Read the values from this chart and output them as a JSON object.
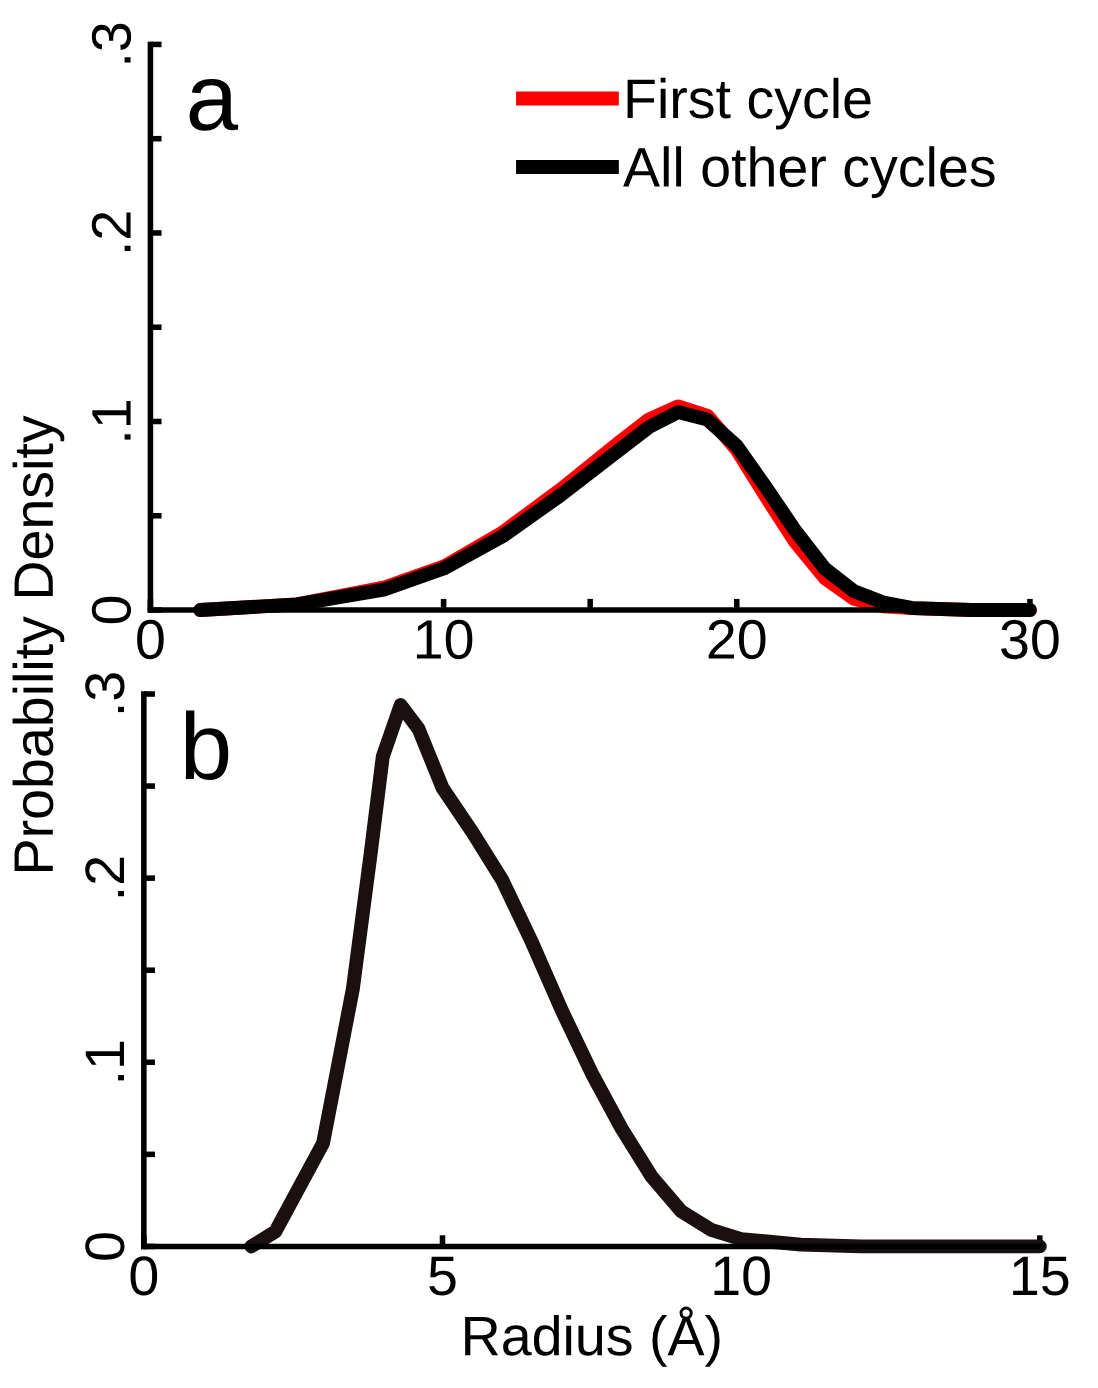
{
  "chart_data": [
    {
      "type": "line",
      "ylabel": "Probability Density",
      "annotations": [
        "a"
      ],
      "xlim": [
        0,
        30
      ],
      "ylim": [
        0,
        0.3
      ],
      "xticks": [
        0,
        {
          "value": 5,
          "label": null
        },
        10,
        {
          "value": 15,
          "label": null
        },
        20,
        {
          "value": 25,
          "label": null
        },
        30
      ],
      "yticks": [
        {
          "value": 0,
          "label": "0"
        },
        {
          "value": 0.05,
          "label": null
        },
        {
          "value": 0.1,
          "label": ".1"
        },
        {
          "value": 0.15,
          "label": null
        },
        {
          "value": 0.2,
          "label": ".2"
        },
        {
          "value": 0.25,
          "label": null
        },
        {
          "value": 0.3,
          "label": ".3"
        }
      ],
      "grid": false,
      "legend": "top right",
      "marker": "none",
      "line_style": "solid",
      "x": [
        1.7,
        5,
        8,
        10,
        12,
        14,
        16,
        17,
        18,
        19,
        20,
        21,
        22,
        23,
        24,
        25,
        26,
        28,
        30
      ],
      "series": [
        {
          "name": "First cycle",
          "color": "#ff0000",
          "values": [
            0,
            0.003,
            0.012,
            0.023,
            0.041,
            0.064,
            0.089,
            0.101,
            0.108,
            0.103,
            0.085,
            0.06,
            0.036,
            0.017,
            0.006,
            0.002,
            0.001,
            0,
            0
          ]
        },
        {
          "name": "All other cycles",
          "color": "#000000",
          "values": [
            0,
            0.003,
            0.011,
            0.022,
            0.039,
            0.061,
            0.085,
            0.097,
            0.105,
            0.101,
            0.087,
            0.065,
            0.042,
            0.022,
            0.01,
            0.004,
            0.001,
            0,
            0
          ]
        }
      ]
    },
    {
      "type": "line",
      "xlabel": "Radius (Å)",
      "annotations": [
        "b"
      ],
      "xlim": [
        0,
        15
      ],
      "ylim": [
        0,
        0.3
      ],
      "xticks": [
        0,
        5,
        10,
        15
      ],
      "yticks": [
        {
          "value": 0,
          "label": "0"
        },
        {
          "value": 0.05,
          "label": null
        },
        {
          "value": 0.1,
          "label": ".1"
        },
        {
          "value": 0.15,
          "label": null
        },
        {
          "value": 0.2,
          "label": ".2"
        },
        {
          "value": 0.25,
          "label": null
        },
        {
          "value": 0.3,
          "label": ".3"
        }
      ],
      "grid": false,
      "marker": "none",
      "line_style": "solid",
      "x": [
        1.8,
        2.2,
        2.5,
        3,
        3.5,
        3.8,
        4,
        4.3,
        4.6,
        5,
        5.5,
        6,
        6.5,
        7,
        7.5,
        8,
        8.5,
        9,
        9.5,
        10,
        11,
        12,
        15
      ],
      "series": [
        {
          "color": "#1a1010",
          "values": [
            0,
            0.008,
            0.026,
            0.056,
            0.14,
            0.214,
            0.266,
            0.294,
            0.281,
            0.249,
            0.225,
            0.199,
            0.165,
            0.128,
            0.094,
            0.064,
            0.038,
            0.019,
            0.009,
            0.004,
            0.001,
            0,
            0
          ]
        }
      ]
    }
  ]
}
